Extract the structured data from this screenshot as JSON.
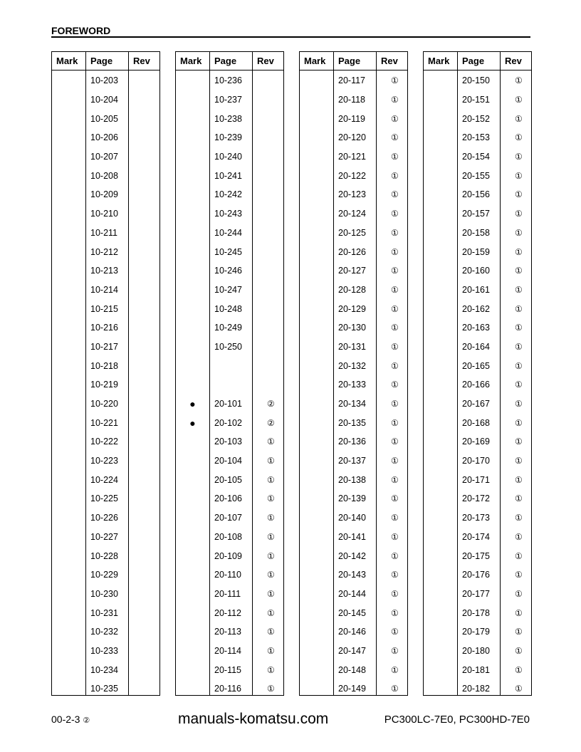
{
  "header": {
    "title": "FOREWORD"
  },
  "columns": {
    "mark": "Mark",
    "page": "Page",
    "rev": "Rev"
  },
  "tables": [
    {
      "rows": [
        [
          "",
          "10-203",
          ""
        ],
        [
          "",
          "10-204",
          ""
        ],
        [
          "",
          "10-205",
          ""
        ],
        [
          "",
          "10-206",
          ""
        ],
        [
          "",
          "10-207",
          ""
        ],
        [
          "",
          "10-208",
          ""
        ],
        [
          "",
          "10-209",
          ""
        ],
        [
          "",
          "10-210",
          ""
        ],
        [
          "",
          "10-211",
          ""
        ],
        [
          "",
          "10-212",
          ""
        ],
        [
          "",
          "10-213",
          ""
        ],
        [
          "",
          "10-214",
          ""
        ],
        [
          "",
          "10-215",
          ""
        ],
        [
          "",
          "10-216",
          ""
        ],
        [
          "",
          "10-217",
          ""
        ],
        [
          "",
          "10-218",
          ""
        ],
        [
          "",
          "10-219",
          ""
        ],
        [
          "",
          "10-220",
          ""
        ],
        [
          "",
          "10-221",
          ""
        ],
        [
          "",
          "10-222",
          ""
        ],
        [
          "",
          "10-223",
          ""
        ],
        [
          "",
          "10-224",
          ""
        ],
        [
          "",
          "10-225",
          ""
        ],
        [
          "",
          "10-226",
          ""
        ],
        [
          "",
          "10-227",
          ""
        ],
        [
          "",
          "10-228",
          ""
        ],
        [
          "",
          "10-229",
          ""
        ],
        [
          "",
          "10-230",
          ""
        ],
        [
          "",
          "10-231",
          ""
        ],
        [
          "",
          "10-232",
          ""
        ],
        [
          "",
          "10-233",
          ""
        ],
        [
          "",
          "10-234",
          ""
        ],
        [
          "",
          "10-235",
          ""
        ]
      ]
    },
    {
      "rows": [
        [
          "",
          "10-236",
          ""
        ],
        [
          "",
          "10-237",
          ""
        ],
        [
          "",
          "10-238",
          ""
        ],
        [
          "",
          "10-239",
          ""
        ],
        [
          "",
          "10-240",
          ""
        ],
        [
          "",
          "10-241",
          ""
        ],
        [
          "",
          "10-242",
          ""
        ],
        [
          "",
          "10-243",
          ""
        ],
        [
          "",
          "10-244",
          ""
        ],
        [
          "",
          "10-245",
          ""
        ],
        [
          "",
          "10-246",
          ""
        ],
        [
          "",
          "10-247",
          ""
        ],
        [
          "",
          "10-248",
          ""
        ],
        [
          "",
          "10-249",
          ""
        ],
        [
          "",
          "10-250",
          ""
        ],
        [
          "",
          "",
          ""
        ],
        [
          "",
          "",
          ""
        ],
        [
          "●",
          "20-101",
          "②"
        ],
        [
          "●",
          "20-102",
          "②"
        ],
        [
          "",
          "20-103",
          "①"
        ],
        [
          "",
          "20-104",
          "①"
        ],
        [
          "",
          "20-105",
          "①"
        ],
        [
          "",
          "20-106",
          "①"
        ],
        [
          "",
          "20-107",
          "①"
        ],
        [
          "",
          "20-108",
          "①"
        ],
        [
          "",
          "20-109",
          "①"
        ],
        [
          "",
          "20-110",
          "①"
        ],
        [
          "",
          "20-111",
          "①"
        ],
        [
          "",
          "20-112",
          "①"
        ],
        [
          "",
          "20-113",
          "①"
        ],
        [
          "",
          "20-114",
          "①"
        ],
        [
          "",
          "20-115",
          "①"
        ],
        [
          "",
          "20-116",
          "①"
        ]
      ]
    },
    {
      "rows": [
        [
          "",
          "20-117",
          "①"
        ],
        [
          "",
          "20-118",
          "①"
        ],
        [
          "",
          "20-119",
          "①"
        ],
        [
          "",
          "20-120",
          "①"
        ],
        [
          "",
          "20-121",
          "①"
        ],
        [
          "",
          "20-122",
          "①"
        ],
        [
          "",
          "20-123",
          "①"
        ],
        [
          "",
          "20-124",
          "①"
        ],
        [
          "",
          "20-125",
          "①"
        ],
        [
          "",
          "20-126",
          "①"
        ],
        [
          "",
          "20-127",
          "①"
        ],
        [
          "",
          "20-128",
          "①"
        ],
        [
          "",
          "20-129",
          "①"
        ],
        [
          "",
          "20-130",
          "①"
        ],
        [
          "",
          "20-131",
          "①"
        ],
        [
          "",
          "20-132",
          "①"
        ],
        [
          "",
          "20-133",
          "①"
        ],
        [
          "",
          "20-134",
          "①"
        ],
        [
          "",
          "20-135",
          "①"
        ],
        [
          "",
          "20-136",
          "①"
        ],
        [
          "",
          "20-137",
          "①"
        ],
        [
          "",
          "20-138",
          "①"
        ],
        [
          "",
          "20-139",
          "①"
        ],
        [
          "",
          "20-140",
          "①"
        ],
        [
          "",
          "20-141",
          "①"
        ],
        [
          "",
          "20-142",
          "①"
        ],
        [
          "",
          "20-143",
          "①"
        ],
        [
          "",
          "20-144",
          "①"
        ],
        [
          "",
          "20-145",
          "①"
        ],
        [
          "",
          "20-146",
          "①"
        ],
        [
          "",
          "20-147",
          "①"
        ],
        [
          "",
          "20-148",
          "①"
        ],
        [
          "",
          "20-149",
          "①"
        ]
      ]
    },
    {
      "rows": [
        [
          "",
          "20-150",
          "①"
        ],
        [
          "",
          "20-151",
          "①"
        ],
        [
          "",
          "20-152",
          "①"
        ],
        [
          "",
          "20-153",
          "①"
        ],
        [
          "",
          "20-154",
          "①"
        ],
        [
          "",
          "20-155",
          "①"
        ],
        [
          "",
          "20-156",
          "①"
        ],
        [
          "",
          "20-157",
          "①"
        ],
        [
          "",
          "20-158",
          "①"
        ],
        [
          "",
          "20-159",
          "①"
        ],
        [
          "",
          "20-160",
          "①"
        ],
        [
          "",
          "20-161",
          "①"
        ],
        [
          "",
          "20-162",
          "①"
        ],
        [
          "",
          "20-163",
          "①"
        ],
        [
          "",
          "20-164",
          "①"
        ],
        [
          "",
          "20-165",
          "①"
        ],
        [
          "",
          "20-166",
          "①"
        ],
        [
          "",
          "20-167",
          "①"
        ],
        [
          "",
          "20-168",
          "①"
        ],
        [
          "",
          "20-169",
          "①"
        ],
        [
          "",
          "20-170",
          "①"
        ],
        [
          "",
          "20-171",
          "①"
        ],
        [
          "",
          "20-172",
          "①"
        ],
        [
          "",
          "20-173",
          "①"
        ],
        [
          "",
          "20-174",
          "①"
        ],
        [
          "",
          "20-175",
          "①"
        ],
        [
          "",
          "20-176",
          "①"
        ],
        [
          "",
          "20-177",
          "①"
        ],
        [
          "",
          "20-178",
          "①"
        ],
        [
          "",
          "20-179",
          "①"
        ],
        [
          "",
          "20-180",
          "①"
        ],
        [
          "",
          "20-181",
          "①"
        ],
        [
          "",
          "20-182",
          "①"
        ]
      ]
    }
  ],
  "footer": {
    "page_number": "00-2-3",
    "revision_mark": "②",
    "model": "PC300LC-7E0, PC300HD-7E0"
  },
  "watermark": "manuals-komatsu.com"
}
